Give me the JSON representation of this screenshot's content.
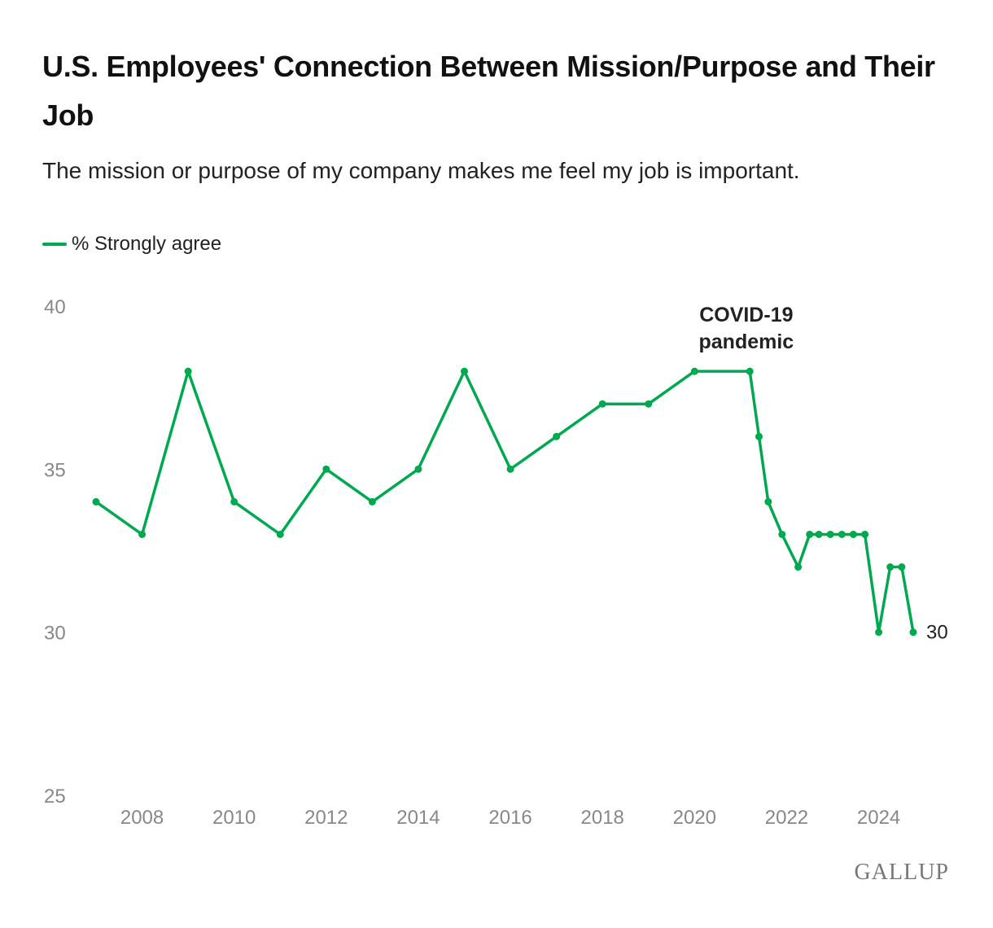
{
  "chart_data": {
    "type": "line",
    "title": "U.S. Employees' Connection Between Mission/Purpose and Their Job",
    "subtitle": "The mission or purpose of my company makes me feel my job is important.",
    "ylim": [
      25,
      40
    ],
    "y_ticks": [
      40,
      35,
      30,
      25
    ],
    "x_ticks": [
      2008,
      2010,
      2012,
      2014,
      2016,
      2018,
      2020,
      2022,
      2024
    ],
    "series": [
      {
        "name": "% Strongly agree",
        "color": "#00a94f",
        "points": [
          {
            "x": 2007.0,
            "y": 34
          },
          {
            "x": 2008.0,
            "y": 33
          },
          {
            "x": 2009.0,
            "y": 38
          },
          {
            "x": 2010.0,
            "y": 34
          },
          {
            "x": 2011.0,
            "y": 33
          },
          {
            "x": 2012.0,
            "y": 35
          },
          {
            "x": 2013.0,
            "y": 34
          },
          {
            "x": 2014.0,
            "y": 35
          },
          {
            "x": 2015.0,
            "y": 38
          },
          {
            "x": 2016.0,
            "y": 35
          },
          {
            "x": 2017.0,
            "y": 36
          },
          {
            "x": 2018.0,
            "y": 37
          },
          {
            "x": 2019.0,
            "y": 37
          },
          {
            "x": 2020.0,
            "y": 38
          },
          {
            "x": 2021.2,
            "y": 38
          },
          {
            "x": 2021.4,
            "y": 36
          },
          {
            "x": 2021.6,
            "y": 34
          },
          {
            "x": 2021.9,
            "y": 33
          },
          {
            "x": 2022.25,
            "y": 32
          },
          {
            "x": 2022.5,
            "y": 33
          },
          {
            "x": 2022.7,
            "y": 33
          },
          {
            "x": 2022.95,
            "y": 33
          },
          {
            "x": 2023.2,
            "y": 33
          },
          {
            "x": 2023.45,
            "y": 33
          },
          {
            "x": 2023.7,
            "y": 33
          },
          {
            "x": 2024.0,
            "y": 30
          },
          {
            "x": 2024.25,
            "y": 32
          },
          {
            "x": 2024.5,
            "y": 32
          },
          {
            "x": 2024.75,
            "y": 30
          }
        ]
      }
    ],
    "annotations": [
      {
        "line1": "COVID-19",
        "line2": "pandemic",
        "x": 2021.3
      }
    ],
    "end_label": "30"
  },
  "brand": "GALLUP"
}
